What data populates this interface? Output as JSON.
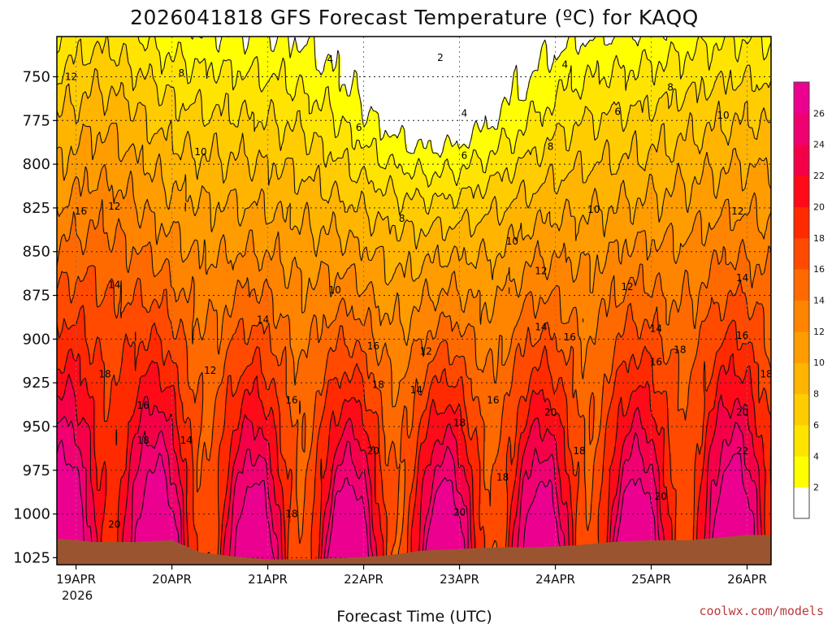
{
  "chart_data": {
    "type": "heatmap",
    "title": "2026041818 GFS Forecast Temperature (ºC) for KAQQ",
    "xlabel": "Forecast Time (UTC)",
    "ylabel": "",
    "credit": "coolwx.com/models",
    "y_axis": {
      "scale": "pressure",
      "inverted": true,
      "ticks": [
        "750",
        "775",
        "800",
        "825",
        "850",
        "875",
        "900",
        "925",
        "950",
        "975",
        "1000",
        "1025"
      ],
      "range": [
        727,
        1029
      ]
    },
    "x_axis": {
      "start_year_label": "2026",
      "ticks": [
        "19APR",
        "20APR",
        "21APR",
        "22APR",
        "23APR",
        "24APR",
        "25APR",
        "26APR"
      ],
      "range_days": [
        -0.2,
        7.25
      ]
    },
    "colorbar": {
      "levels": [
        2,
        4,
        6,
        8,
        10,
        12,
        14,
        16,
        18,
        20,
        22,
        24,
        26
      ],
      "labels": [
        "2",
        "4",
        "6",
        "8",
        "10",
        "12",
        "14",
        "16",
        "18",
        "20",
        "22",
        "24",
        "26"
      ],
      "colors": [
        "#ffffff",
        "#ffff00",
        "#ffe400",
        "#ffcc00",
        "#ffb400",
        "#ff9c00",
        "#ff8400",
        "#ff6a00",
        "#ff4a00",
        "#ff2a00",
        "#ff0a18",
        "#f50048",
        "#f00070",
        "#ec0090",
        "#ee00a8"
      ]
    },
    "ground_color": "#9a5530",
    "surface_pressure": [
      1014,
      1016,
      1016,
      1015,
      1022,
      1024,
      1026,
      1026,
      1025,
      1024,
      1021,
      1020,
      1019,
      1019,
      1018,
      1016,
      1015,
      1015,
      1013,
      1012,
      1012
    ],
    "surface_x_days": [
      -0.2,
      0.2,
      0.6,
      1.0,
      1.3,
      1.6,
      2.0,
      2.4,
      2.8,
      3.2,
      3.6,
      4.0,
      4.4,
      4.8,
      5.2,
      5.6,
      6.0,
      6.4,
      6.8,
      7.0,
      7.25
    ],
    "contour_labels": [
      {
        "text": "12",
        "x": -0.05,
        "p": 750
      },
      {
        "text": "8",
        "x": 1.1,
        "p": 748
      },
      {
        "text": "4",
        "x": 2.65,
        "p": 740
      },
      {
        "text": "2",
        "x": 3.8,
        "p": 739
      },
      {
        "text": "4",
        "x": 5.1,
        "p": 743
      },
      {
        "text": "8",
        "x": 6.2,
        "p": 756
      },
      {
        "text": "4",
        "x": 4.05,
        "p": 771
      },
      {
        "text": "6",
        "x": 5.65,
        "p": 770
      },
      {
        "text": "10",
        "x": 6.75,
        "p": 772
      },
      {
        "text": "6",
        "x": 2.95,
        "p": 779
      },
      {
        "text": "10",
        "x": 1.3,
        "p": 793
      },
      {
        "text": "6",
        "x": 4.05,
        "p": 795
      },
      {
        "text": "8",
        "x": 4.95,
        "p": 790
      },
      {
        "text": "12",
        "x": 0.4,
        "p": 824
      },
      {
        "text": "16",
        "x": 0.05,
        "p": 827
      },
      {
        "text": "8",
        "x": 3.4,
        "p": 831
      },
      {
        "text": "10",
        "x": 5.4,
        "p": 826
      },
      {
        "text": "12",
        "x": 6.9,
        "p": 827
      },
      {
        "text": "10",
        "x": 4.55,
        "p": 844
      },
      {
        "text": "12",
        "x": 4.85,
        "p": 861
      },
      {
        "text": "14",
        "x": 0.4,
        "p": 869
      },
      {
        "text": "10",
        "x": 2.7,
        "p": 872
      },
      {
        "text": "12",
        "x": 5.75,
        "p": 870
      },
      {
        "text": "14",
        "x": 6.95,
        "p": 865
      },
      {
        "text": "14",
        "x": 1.95,
        "p": 889
      },
      {
        "text": "14",
        "x": 4.85,
        "p": 893
      },
      {
        "text": "16",
        "x": 5.15,
        "p": 899
      },
      {
        "text": "14",
        "x": 6.05,
        "p": 894
      },
      {
        "text": "16",
        "x": 6.95,
        "p": 898
      },
      {
        "text": "16",
        "x": 3.1,
        "p": 904
      },
      {
        "text": "12",
        "x": 3.65,
        "p": 907
      },
      {
        "text": "18",
        "x": 6.3,
        "p": 906
      },
      {
        "text": "16",
        "x": 6.05,
        "p": 913
      },
      {
        "text": "12",
        "x": 1.4,
        "p": 918
      },
      {
        "text": "18",
        "x": 0.3,
        "p": 920
      },
      {
        "text": "18",
        "x": 3.15,
        "p": 926
      },
      {
        "text": "14",
        "x": 3.55,
        "p": 929
      },
      {
        "text": "18",
        "x": 7.2,
        "p": 920
      },
      {
        "text": "16",
        "x": 0.7,
        "p": 938
      },
      {
        "text": "16",
        "x": 2.25,
        "p": 935
      },
      {
        "text": "16",
        "x": 4.35,
        "p": 935
      },
      {
        "text": "18",
        "x": 4.0,
        "p": 948
      },
      {
        "text": "20",
        "x": 4.95,
        "p": 942
      },
      {
        "text": "20",
        "x": 6.95,
        "p": 942
      },
      {
        "text": "18",
        "x": 0.7,
        "p": 958
      },
      {
        "text": "14",
        "x": 1.15,
        "p": 958
      },
      {
        "text": "20",
        "x": 3.1,
        "p": 964
      },
      {
        "text": "18",
        "x": 5.25,
        "p": 964
      },
      {
        "text": "22",
        "x": 6.95,
        "p": 964
      },
      {
        "text": "18",
        "x": 4.45,
        "p": 979
      },
      {
        "text": "20",
        "x": 6.1,
        "p": 990
      },
      {
        "text": "18",
        "x": 2.25,
        "p": 1000
      },
      {
        "text": "20",
        "x": 4.0,
        "p": 999
      },
      {
        "text": "20",
        "x": 0.4,
        "p": 1006
      }
    ]
  }
}
